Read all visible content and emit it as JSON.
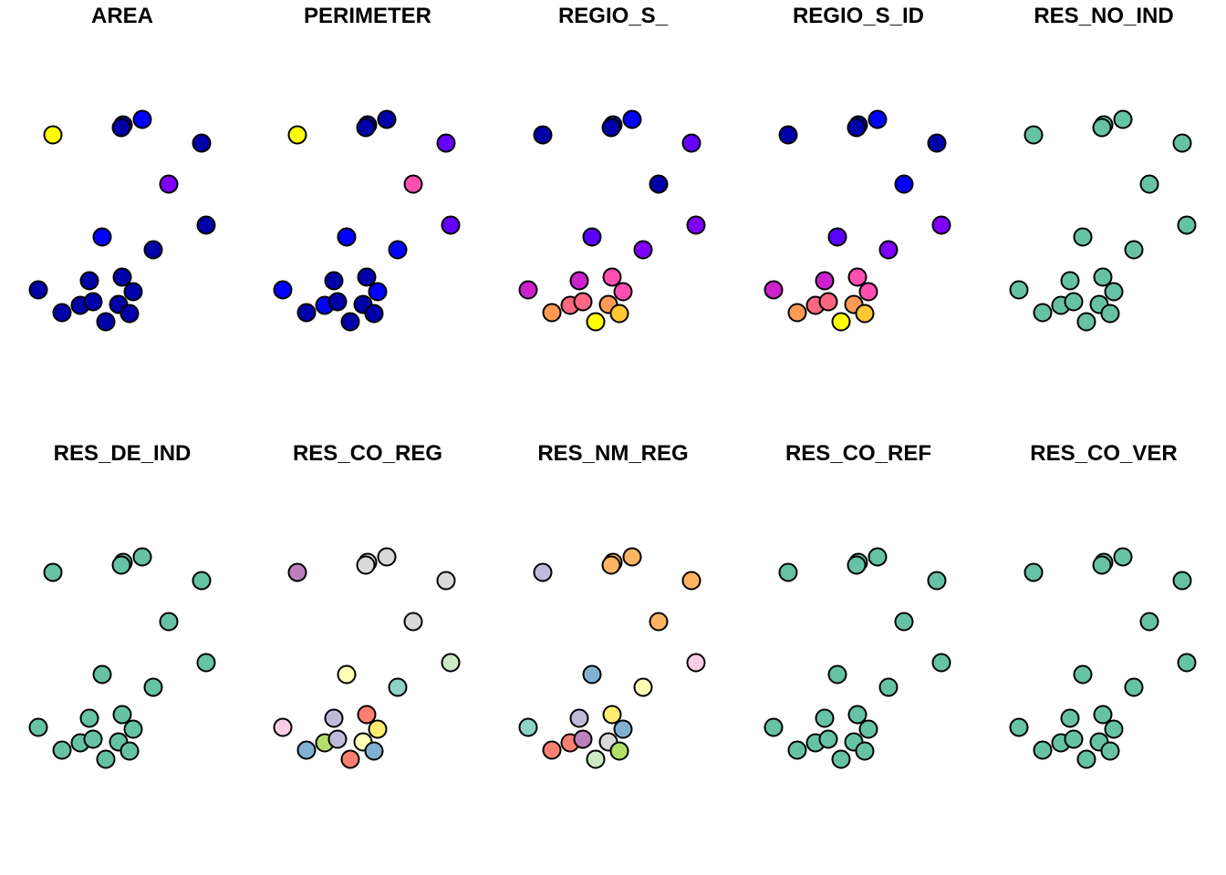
{
  "panels": [
    {
      "title": "AREA",
      "colors": [
        "#FFFF00",
        "#0000A8",
        "#0000A8",
        "#0000FF",
        "#0000A8",
        "#8000FF",
        "#0000A8",
        "#0000FF",
        "#0000A8",
        "#0000A8",
        "#0000A8",
        "#0000A8",
        "#0000A8",
        "#0000A8",
        "#0000A8",
        "#0000A8",
        "#0000A8",
        "#0000A8",
        "#0000A8"
      ]
    },
    {
      "title": "PERIMETER",
      "colors": [
        "#FFFF00",
        "#0000A8",
        "#0000A8",
        "#0000A8",
        "#6600FF",
        "#FF4FB0",
        "#6600FF",
        "#0000FF",
        "#0000FF",
        "#0000FF",
        "#0000A8",
        "#0000A8",
        "#0000FF",
        "#0000FF",
        "#0000A8",
        "#0000A8",
        "#0000A8",
        "#0000A8",
        "#0000A8"
      ]
    },
    {
      "title": "REGIO_S_",
      "colors": [
        "#0000A8",
        "#0000A8",
        "#0000A8",
        "#0000FF",
        "#6600FF",
        "#0000A8",
        "#8000FF",
        "#5A00FF",
        "#8000FF",
        "#CC22CC",
        "#FF4FB0",
        "#CC22CC",
        "#FF4FB0",
        "#FF6680",
        "#FF6680",
        "#FF9A55",
        "#FF9A55",
        "#FFC733",
        "#FFFF00"
      ]
    },
    {
      "title": "REGIO_S_ID",
      "colors": [
        "#0000A8",
        "#0000A8",
        "#0000A8",
        "#0000FF",
        "#0000A8",
        "#0000FF",
        "#8000FF",
        "#5A00FF",
        "#8000FF",
        "#CC22CC",
        "#FF4FB0",
        "#CC22CC",
        "#FF4FB0",
        "#FF6680",
        "#FF6680",
        "#FF9A55",
        "#FF9A55",
        "#FFC733",
        "#FFFF00"
      ]
    },
    {
      "title": "RES_NO_IND",
      "colors": [
        "#66C2A5",
        "#66C2A5",
        "#66C2A5",
        "#66C2A5",
        "#66C2A5",
        "#66C2A5",
        "#66C2A5",
        "#66C2A5",
        "#66C2A5",
        "#66C2A5",
        "#66C2A5",
        "#66C2A5",
        "#66C2A5",
        "#66C2A5",
        "#66C2A5",
        "#66C2A5",
        "#66C2A5",
        "#66C2A5",
        "#66C2A5"
      ]
    },
    {
      "title": "RES_DE_IND",
      "colors": [
        "#66C2A5",
        "#66C2A5",
        "#66C2A5",
        "#66C2A5",
        "#66C2A5",
        "#66C2A5",
        "#66C2A5",
        "#66C2A5",
        "#66C2A5",
        "#66C2A5",
        "#66C2A5",
        "#66C2A5",
        "#66C2A5",
        "#66C2A5",
        "#66C2A5",
        "#66C2A5",
        "#66C2A5",
        "#66C2A5",
        "#66C2A5"
      ]
    },
    {
      "title": "RES_CO_REG",
      "colors": [
        "#BC80BD",
        "#D9D9D9",
        "#D9D9D9",
        "#D9D9D9",
        "#D9D9D9",
        "#D9D9D9",
        "#CCEBC5",
        "#FFFFB3",
        "#8DD3C7",
        "#FCCDE5",
        "#FB8072",
        "#BEBADA",
        "#FFED6F",
        "#B3DE69",
        "#BEBADA",
        "#FFFFB3",
        "#80B1D3",
        "#80B1D3",
        "#FB8072"
      ]
    },
    {
      "title": "RES_NM_REG",
      "colors": [
        "#BEBADA",
        "#FDB462",
        "#FDB462",
        "#FDB462",
        "#FDB462",
        "#FDB462",
        "#FCCDE5",
        "#80B1D3",
        "#FFFFB3",
        "#8DD3C7",
        "#FFED6F",
        "#BEBADA",
        "#80B1D3",
        "#FB8072",
        "#BC80BD",
        "#D9D9D9",
        "#FB8072",
        "#B3DE69",
        "#CCEBC5"
      ]
    },
    {
      "title": "RES_CO_REF",
      "colors": [
        "#66C2A5",
        "#66C2A5",
        "#66C2A5",
        "#66C2A5",
        "#66C2A5",
        "#66C2A5",
        "#66C2A5",
        "#66C2A5",
        "#66C2A5",
        "#66C2A5",
        "#66C2A5",
        "#66C2A5",
        "#66C2A5",
        "#66C2A5",
        "#66C2A5",
        "#66C2A5",
        "#66C2A5",
        "#66C2A5",
        "#66C2A5"
      ]
    },
    {
      "title": "RES_CO_VER",
      "colors": [
        "#66C2A5",
        "#66C2A5",
        "#66C2A5",
        "#66C2A5",
        "#66C2A5",
        "#66C2A5",
        "#66C2A5",
        "#66C2A5",
        "#66C2A5",
        "#66C2A5",
        "#66C2A5",
        "#66C2A5",
        "#66C2A5",
        "#66C2A5",
        "#66C2A5",
        "#66C2A5",
        "#66C2A5",
        "#66C2A5",
        "#66C2A5"
      ]
    }
  ]
}
